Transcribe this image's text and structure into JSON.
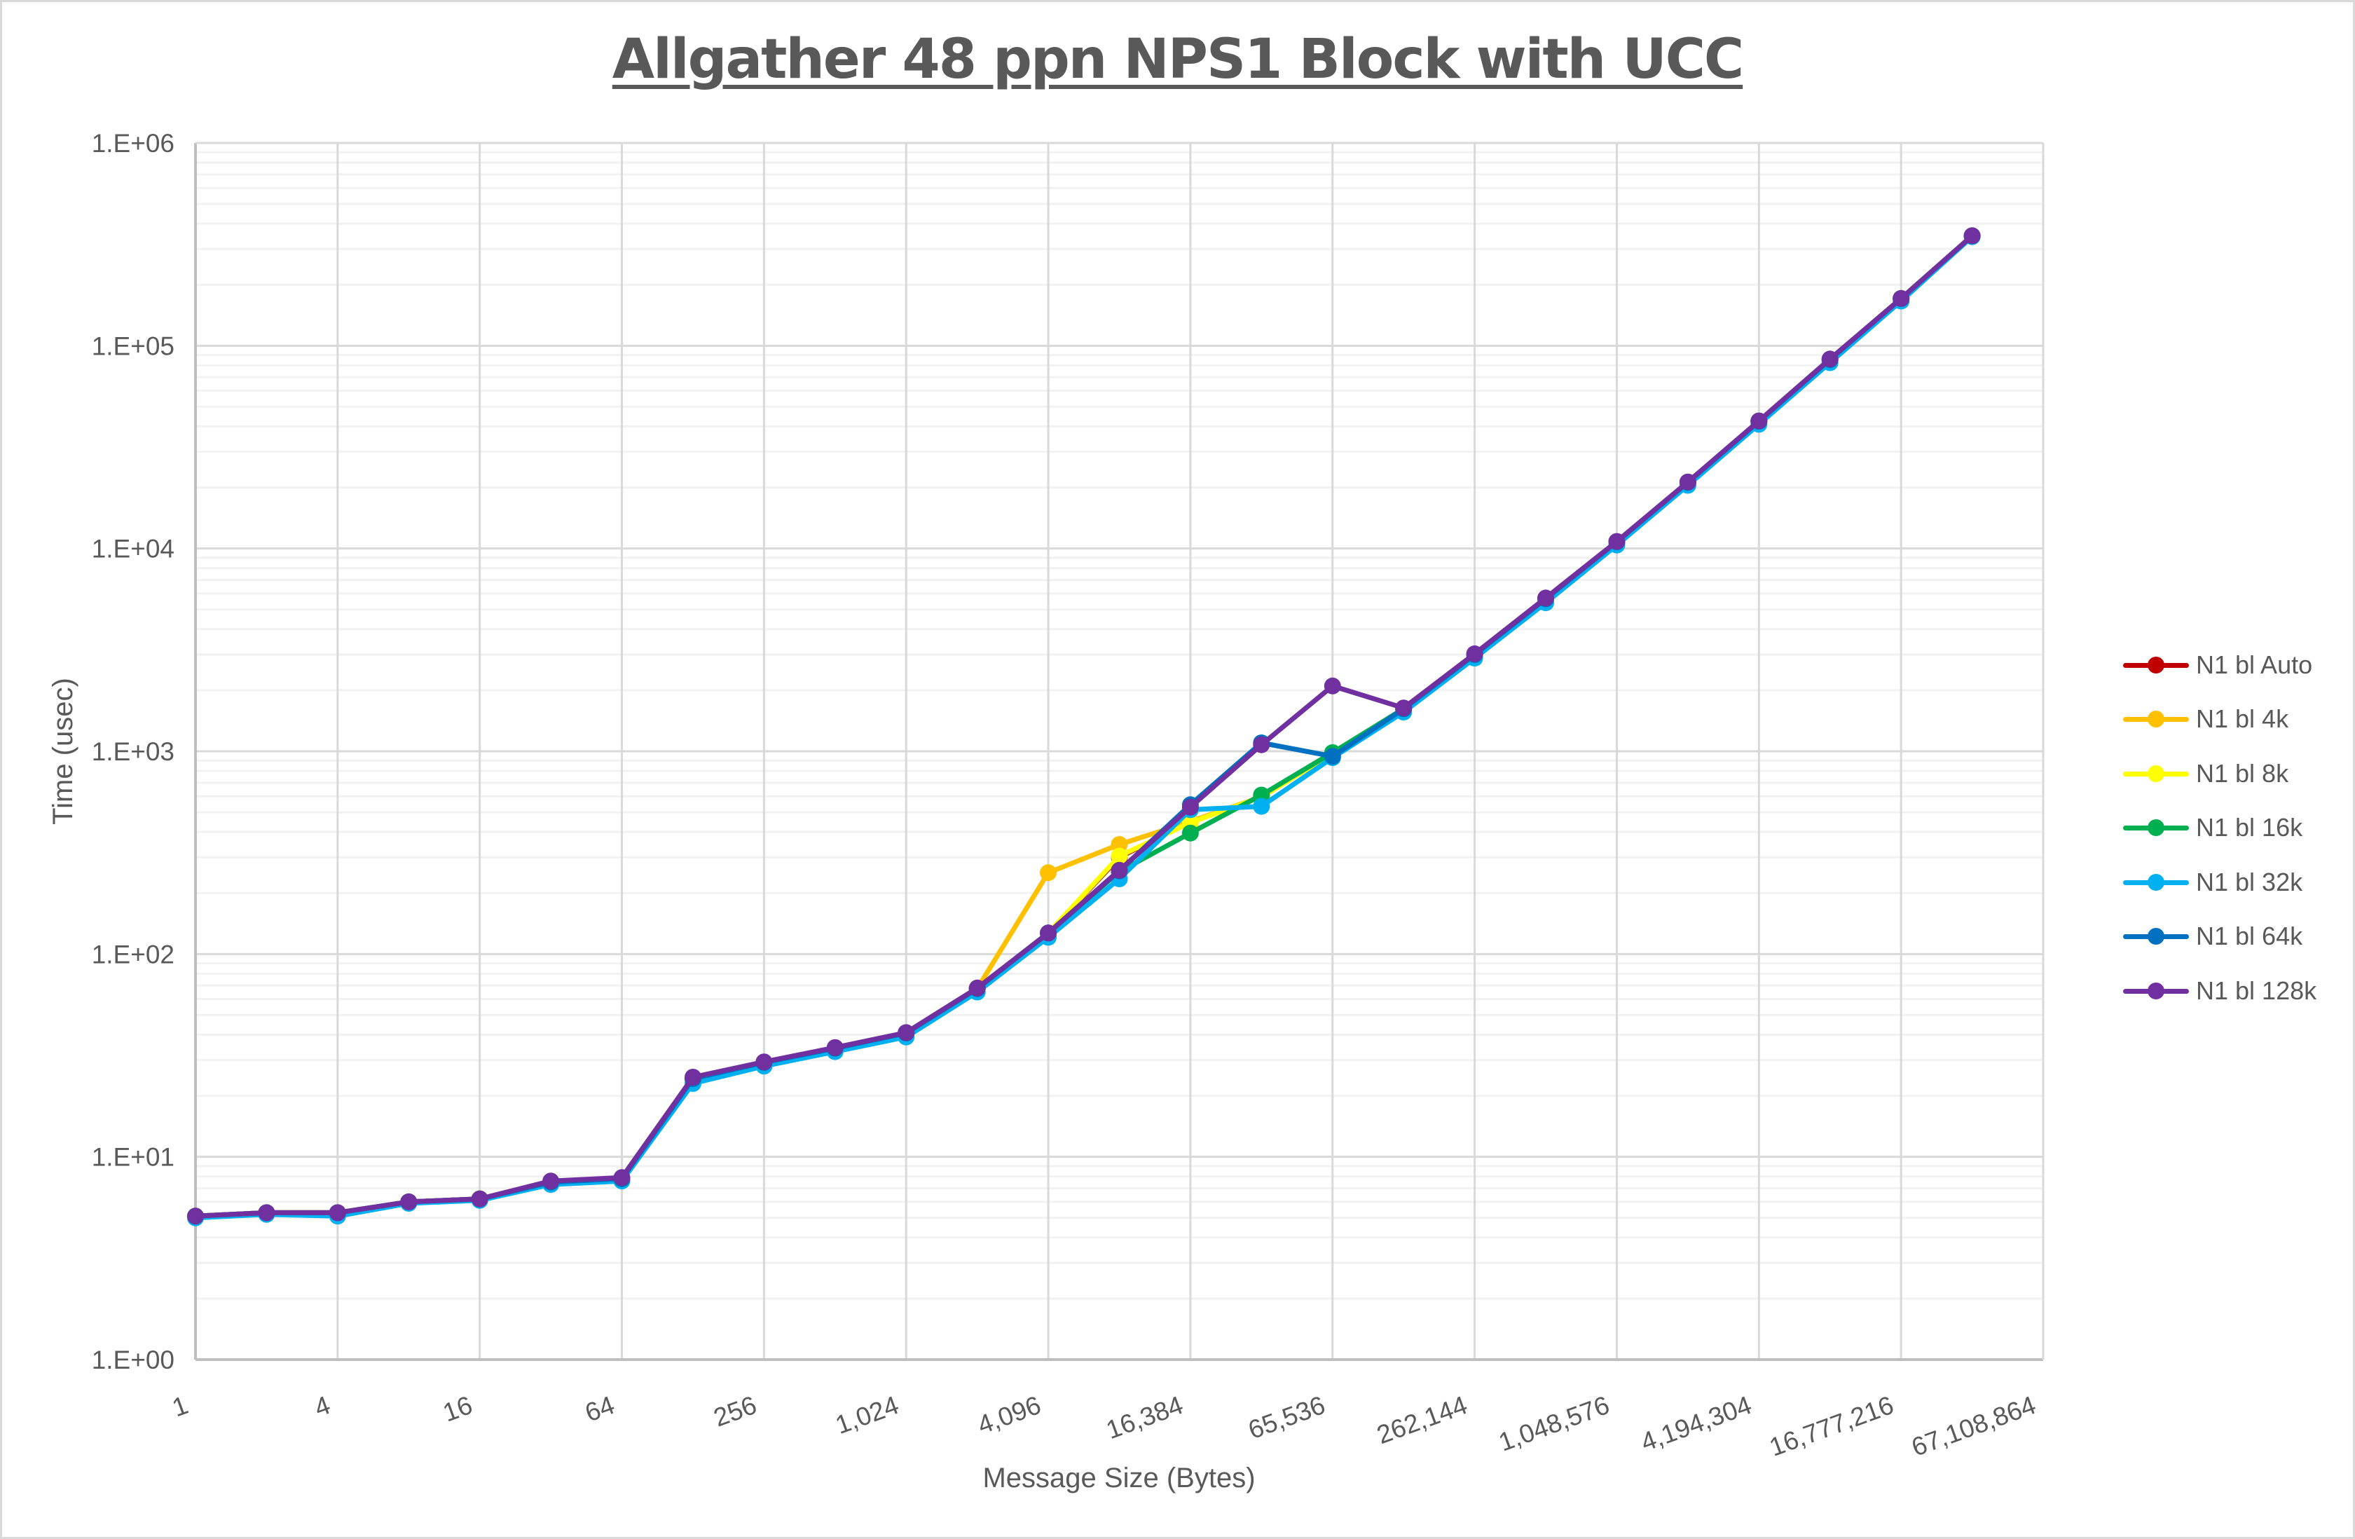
{
  "chart": {
    "title": "Allgather 48 ppn NPS1 Block with UCC"
  },
  "chart_data": {
    "type": "line",
    "title": "Allgather 48 ppn NPS1 Block with UCC",
    "xlabel": "Message Size (Bytes)",
    "ylabel": "Time (usec)",
    "x_scale": "log2",
    "y_scale": "log10",
    "ylim": [
      1,
      1000000
    ],
    "xlim": [
      1,
      67108864
    ],
    "y_ticks": [
      "1.E+00",
      "1.E+01",
      "1.E+02",
      "1.E+03",
      "1.E+04",
      "1.E+05",
      "1.E+06"
    ],
    "x_ticks": [
      "1",
      "4",
      "16",
      "64",
      "256",
      "1,024",
      "4,096",
      "16,384",
      "65,536",
      "262,144",
      "1,048,576",
      "4,194,304",
      "16,777,216",
      "67,108,864"
    ],
    "grid": true,
    "legend_position": "right",
    "x": [
      1,
      2,
      4,
      8,
      16,
      32,
      64,
      128,
      256,
      512,
      1024,
      2048,
      4096,
      8192,
      16384,
      32768,
      65536,
      131072,
      262144,
      524288,
      1048576,
      2097152,
      4194304,
      8388608,
      16777216,
      33554432
    ],
    "series": [
      {
        "name": "N1 bl Auto",
        "color": "#C00000",
        "values": [
          5.1,
          5.3,
          5.3,
          6.0,
          6.2,
          7.5,
          7.8,
          24.3,
          29.2,
          34.3,
          40.8,
          67.5,
          127,
          300,
          450,
          595,
          975,
          1620,
          3000,
          5650,
          10800,
          21200,
          42400,
          85500,
          171000,
          348000
        ]
      },
      {
        "name": "N1 bl 4k",
        "color": "#FFC000",
        "values": [
          5.1,
          5.3,
          5.3,
          6.0,
          6.2,
          7.5,
          7.8,
          24.3,
          29.2,
          34.3,
          40.8,
          67.5,
          252,
          347,
          450,
          595,
          975,
          1620,
          3000,
          5650,
          10800,
          21200,
          42400,
          85500,
          171000,
          348000
        ]
      },
      {
        "name": "N1 bl 8k",
        "color": "#FFFF00",
        "values": [
          5.1,
          5.3,
          5.3,
          6.0,
          6.2,
          7.5,
          7.8,
          24.3,
          29.2,
          34.3,
          40.8,
          67.5,
          127,
          304,
          445,
          595,
          975,
          1620,
          3000,
          5650,
          10800,
          21200,
          42400,
          85500,
          171000,
          348000
        ]
      },
      {
        "name": "N1 bl 16k",
        "color": "#00B050",
        "values": [
          5.1,
          5.3,
          5.3,
          6.0,
          6.2,
          7.5,
          7.8,
          24.3,
          29.2,
          34.3,
          40.8,
          67.5,
          127,
          255,
          395,
          608,
          985,
          1620,
          3000,
          5650,
          10800,
          21200,
          42400,
          85500,
          171000,
          348000
        ]
      },
      {
        "name": "N1 bl 32k",
        "color": "#00B0F0",
        "values": [
          5.0,
          5.2,
          5.1,
          5.9,
          6.1,
          7.3,
          7.6,
          23.0,
          28.0,
          33.0,
          39.0,
          65.0,
          121,
          235,
          515,
          535,
          930,
          1560,
          2880,
          5400,
          10400,
          20500,
          41000,
          82500,
          166000,
          345000
        ]
      },
      {
        "name": "N1 bl 64k",
        "color": "#0070C0",
        "values": [
          5.1,
          5.3,
          5.3,
          6.0,
          6.2,
          7.5,
          7.8,
          24.3,
          29.2,
          34.3,
          40.8,
          67.5,
          127,
          257,
          545,
          1100,
          944,
          1620,
          3000,
          5650,
          10800,
          21200,
          42400,
          85500,
          171000,
          348000
        ]
      },
      {
        "name": "N1 bl 128k",
        "color": "#7030A0",
        "values": [
          5.1,
          5.3,
          5.3,
          6.0,
          6.2,
          7.6,
          7.9,
          24.7,
          29.4,
          34.6,
          41.0,
          68.0,
          127,
          259,
          530,
          1077,
          2100,
          1635,
          3025,
          5700,
          10830,
          21300,
          42600,
          86000,
          171000,
          349000
        ]
      }
    ]
  }
}
